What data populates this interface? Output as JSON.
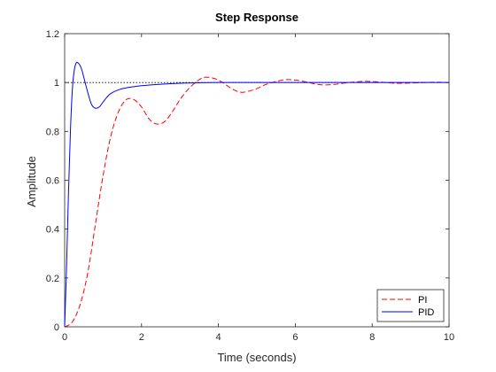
{
  "chart_data": {
    "type": "line",
    "title": "Step Response",
    "xlabel": "Time (seconds)",
    "ylabel": "Amplitude",
    "xlim": [
      0,
      10
    ],
    "ylim": [
      0,
      1.2
    ],
    "xticks": [
      0,
      2,
      4,
      6,
      8,
      10
    ],
    "yticks": [
      0,
      0.2,
      0.4,
      0.6,
      0.8,
      1,
      1.2
    ],
    "xtick_labels": [
      "0",
      "2",
      "4",
      "6",
      "8",
      "10"
    ],
    "ytick_labels": [
      "0",
      "0.2",
      "0.4",
      "0.6",
      "0.8",
      "1",
      "1.2"
    ],
    "reference_line": {
      "y": 1,
      "style": "dotted",
      "color": "#000000"
    },
    "grid": false,
    "legend_position": "bottom-right",
    "series": [
      {
        "name": "PI",
        "color": "#ff0000",
        "dash": "dashed",
        "x": [
          0,
          0.2,
          0.4,
          0.6,
          0.8,
          1.0,
          1.2,
          1.4,
          1.6,
          1.8,
          2.0,
          2.2,
          2.4,
          2.6,
          2.8,
          3.0,
          3.2,
          3.4,
          3.6,
          3.8,
          4.0,
          4.2,
          4.4,
          4.6,
          4.8,
          5.0,
          5.2,
          5.4,
          5.6,
          5.8,
          6.0,
          6.2,
          6.4,
          6.6,
          6.8,
          7.0,
          7.2,
          7.4,
          7.6,
          7.8,
          8.0,
          8.2,
          8.4,
          8.6,
          8.8,
          9.0,
          9.2,
          9.4,
          9.6,
          9.8,
          10.0
        ],
        "y": [
          0,
          0.02,
          0.09,
          0.22,
          0.42,
          0.62,
          0.78,
          0.88,
          0.93,
          0.93,
          0.9,
          0.85,
          0.83,
          0.84,
          0.88,
          0.93,
          0.97,
          1.0,
          1.02,
          1.02,
          1.01,
          0.99,
          0.97,
          0.96,
          0.965,
          0.975,
          0.99,
          1.0,
          1.008,
          1.012,
          1.01,
          1.005,
          0.998,
          0.992,
          0.99,
          0.992,
          0.996,
          1.0,
          1.003,
          1.005,
          1.004,
          1.002,
          0.999,
          0.997,
          0.997,
          0.998,
          0.999,
          1.0,
          1.001,
          1.001,
          1.0
        ]
      },
      {
        "name": "PID",
        "color": "#0000ff",
        "dash": "solid",
        "x": [
          0,
          0.05,
          0.1,
          0.15,
          0.2,
          0.25,
          0.3,
          0.35,
          0.4,
          0.45,
          0.5,
          0.6,
          0.7,
          0.8,
          0.9,
          1.0,
          1.1,
          1.2,
          1.4,
          1.6,
          1.8,
          2.0,
          2.5,
          3.0,
          3.5,
          4.0,
          5.0,
          6.0,
          7.0,
          8.0,
          9.0,
          10.0
        ],
        "y": [
          0,
          0.25,
          0.55,
          0.8,
          0.97,
          1.05,
          1.08,
          1.08,
          1.07,
          1.05,
          1.02,
          0.96,
          0.91,
          0.895,
          0.9,
          0.92,
          0.94,
          0.955,
          0.97,
          0.978,
          0.983,
          0.987,
          0.993,
          0.997,
          0.999,
          1.0,
          1.0,
          1.0,
          1.0,
          1.0,
          1.0,
          1.0
        ]
      }
    ]
  }
}
